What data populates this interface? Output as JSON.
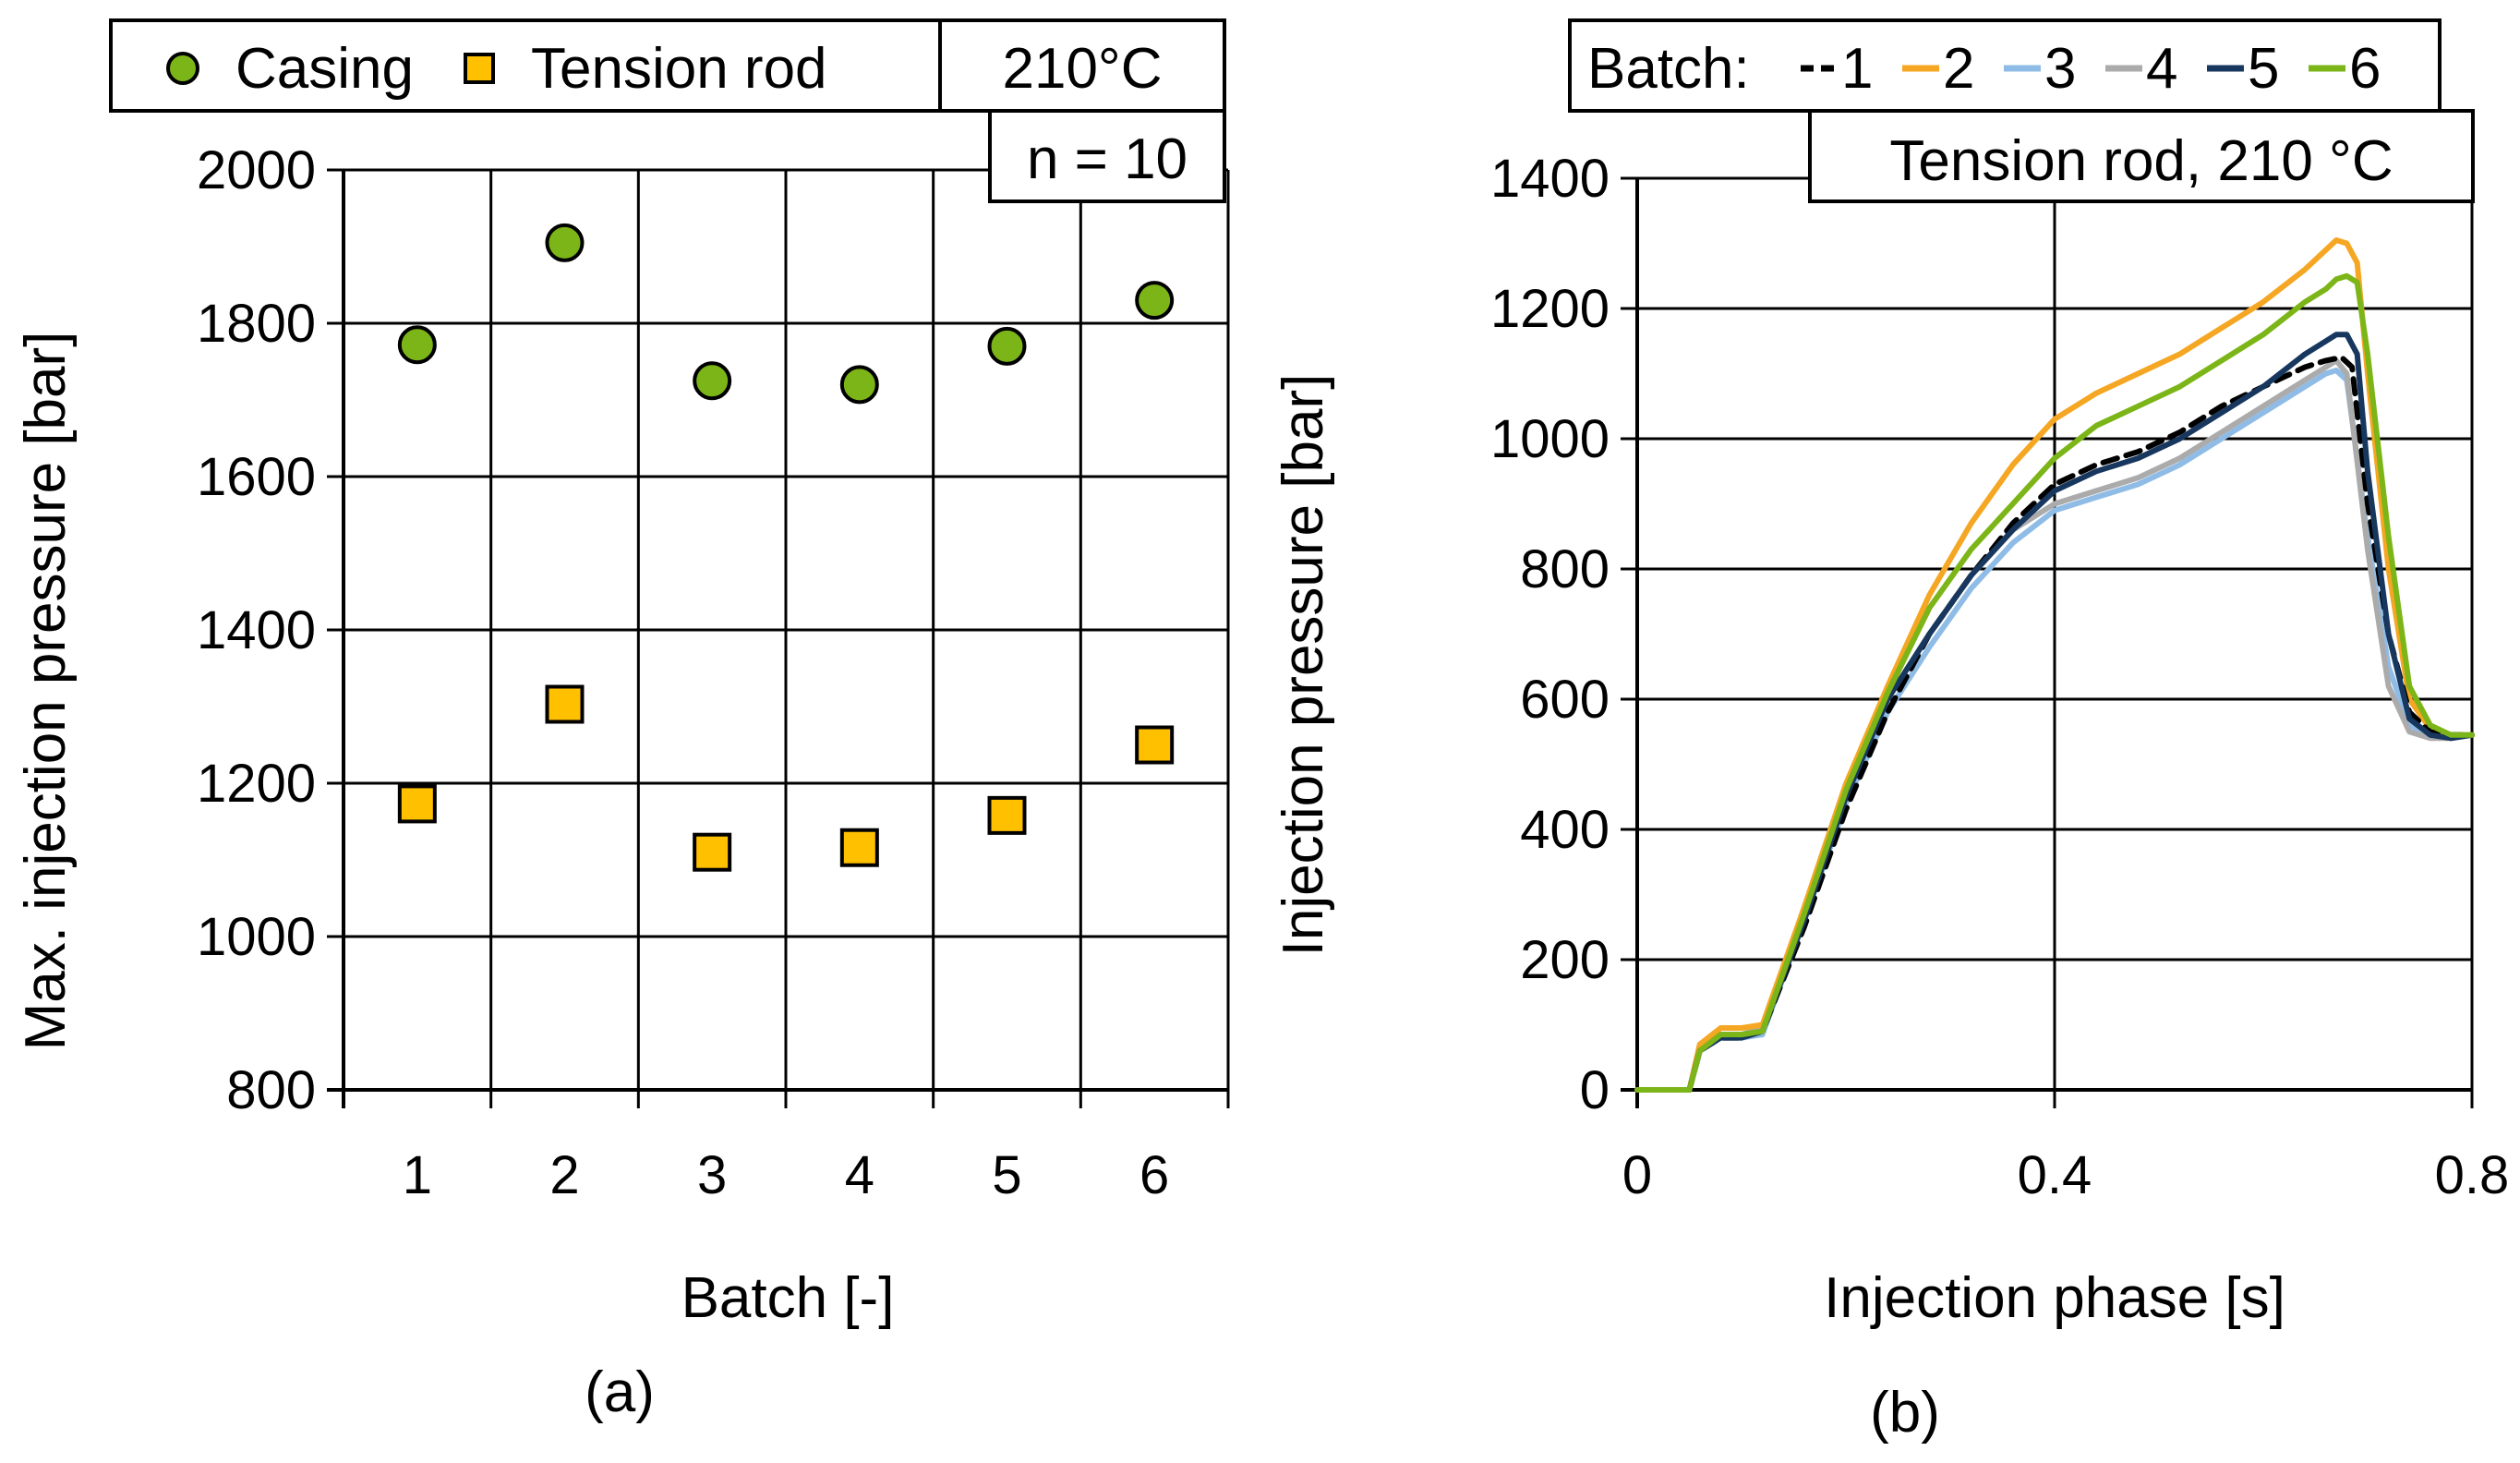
{
  "chart_data": [
    {
      "type": "scatter",
      "panel_label": "(a)",
      "xlabel": "Batch   [-]",
      "ylabel": "Max. injection pressure   [bar]",
      "categories": [
        "1",
        "2",
        "3",
        "4",
        "5",
        "6"
      ],
      "ylim": [
        800,
        2000
      ],
      "yticks": [
        "800",
        "1000",
        "1200",
        "1400",
        "1600",
        "1800",
        "2000"
      ],
      "grid": true,
      "legend_position": "top",
      "annotations": [
        "210°C",
        "n = 10"
      ],
      "series": [
        {
          "name": "Casing",
          "marker": "circle",
          "color": "#7CB518",
          "values": [
            1772,
            1905,
            1725,
            1720,
            1770,
            1830
          ]
        },
        {
          "name": "Tension rod",
          "marker": "square",
          "color": "#FFC000",
          "values": [
            1173,
            1303,
            1110,
            1116,
            1158,
            1250
          ]
        }
      ]
    },
    {
      "type": "line",
      "panel_label": "(b)",
      "xlabel": "Injection phase   [s]",
      "ylabel": "Injection pressure   [bar]",
      "xlim": [
        0,
        0.8
      ],
      "xticks": [
        "0",
        "0.4",
        "0.8"
      ],
      "ylim": [
        0,
        1400
      ],
      "yticks": [
        "0",
        "200",
        "400",
        "600",
        "800",
        "1000",
        "1200",
        "1400"
      ],
      "grid": true,
      "legend_title": "Batch:",
      "legend_position": "top",
      "annotation": "Tension rod, 210 °C",
      "series": [
        {
          "name": "1",
          "color": "#000000",
          "dash": "dashed",
          "x": [
            0,
            0.04,
            0.05,
            0.06,
            0.08,
            0.1,
            0.12,
            0.16,
            0.2,
            0.24,
            0.28,
            0.32,
            0.36,
            0.4,
            0.44,
            0.48,
            0.52,
            0.56,
            0.6,
            0.64,
            0.66,
            0.675,
            0.685,
            0.7,
            0.72,
            0.74,
            0.76,
            0.78,
            0.8
          ],
          "y": [
            0,
            0,
            0,
            60,
            80,
            80,
            90,
            250,
            430,
            580,
            700,
            790,
            870,
            930,
            960,
            980,
            1010,
            1050,
            1080,
            1110,
            1120,
            1125,
            1110,
            900,
            700,
            580,
            550,
            545,
            545
          ]
        },
        {
          "name": "2",
          "color": "#F5A623",
          "dash": "solid",
          "x": [
            0,
            0.04,
            0.05,
            0.06,
            0.08,
            0.1,
            0.12,
            0.16,
            0.2,
            0.24,
            0.28,
            0.32,
            0.36,
            0.4,
            0.44,
            0.48,
            0.52,
            0.56,
            0.6,
            0.64,
            0.66,
            0.67,
            0.68,
            0.69,
            0.7,
            0.72,
            0.74,
            0.76,
            0.78,
            0.8
          ],
          "y": [
            0,
            0,
            0,
            70,
            95,
            95,
            100,
            280,
            470,
            620,
            760,
            870,
            960,
            1030,
            1070,
            1100,
            1130,
            1170,
            1210,
            1260,
            1290,
            1305,
            1300,
            1270,
            1100,
            800,
            600,
            555,
            545,
            545
          ]
        },
        {
          "name": "3",
          "color": "#8FBCE6",
          "dash": "solid",
          "x": [
            0,
            0.04,
            0.05,
            0.06,
            0.08,
            0.1,
            0.12,
            0.16,
            0.2,
            0.24,
            0.28,
            0.32,
            0.36,
            0.4,
            0.44,
            0.48,
            0.52,
            0.56,
            0.6,
            0.64,
            0.66,
            0.67,
            0.68,
            0.7,
            0.72,
            0.74,
            0.76,
            0.78,
            0.8
          ],
          "y": [
            0,
            0,
            0,
            65,
            80,
            80,
            85,
            260,
            440,
            580,
            680,
            770,
            840,
            890,
            910,
            930,
            960,
            1000,
            1040,
            1080,
            1100,
            1105,
            1090,
            850,
            650,
            560,
            545,
            545,
            545
          ]
        },
        {
          "name": "4",
          "color": "#ABABAB",
          "dash": "solid",
          "x": [
            0,
            0.04,
            0.05,
            0.06,
            0.08,
            0.1,
            0.12,
            0.16,
            0.2,
            0.24,
            0.28,
            0.32,
            0.36,
            0.4,
            0.44,
            0.48,
            0.52,
            0.56,
            0.6,
            0.64,
            0.66,
            0.67,
            0.68,
            0.7,
            0.72,
            0.74,
            0.76,
            0.78,
            0.8
          ],
          "y": [
            0,
            0,
            0,
            70,
            85,
            85,
            95,
            280,
            470,
            600,
            700,
            790,
            860,
            900,
            920,
            940,
            970,
            1010,
            1050,
            1090,
            1110,
            1120,
            1100,
            830,
            620,
            550,
            540,
            540,
            545
          ]
        },
        {
          "name": "5",
          "color": "#17375E",
          "dash": "solid",
          "x": [
            0,
            0.04,
            0.05,
            0.06,
            0.08,
            0.1,
            0.12,
            0.16,
            0.2,
            0.24,
            0.28,
            0.32,
            0.36,
            0.4,
            0.44,
            0.48,
            0.52,
            0.56,
            0.6,
            0.64,
            0.66,
            0.67,
            0.68,
            0.69,
            0.7,
            0.72,
            0.74,
            0.76,
            0.78,
            0.8
          ],
          "y": [
            0,
            0,
            0,
            60,
            80,
            80,
            90,
            260,
            450,
            600,
            700,
            790,
            860,
            920,
            950,
            970,
            1000,
            1040,
            1080,
            1130,
            1150,
            1160,
            1160,
            1130,
            950,
            700,
            570,
            545,
            540,
            545
          ]
        },
        {
          "name": "6",
          "color": "#7CB518",
          "dash": "solid",
          "x": [
            0,
            0.04,
            0.05,
            0.06,
            0.08,
            0.1,
            0.12,
            0.16,
            0.2,
            0.24,
            0.28,
            0.32,
            0.36,
            0.4,
            0.44,
            0.48,
            0.52,
            0.56,
            0.6,
            0.64,
            0.66,
            0.67,
            0.68,
            0.69,
            0.7,
            0.72,
            0.74,
            0.76,
            0.78,
            0.8
          ],
          "y": [
            0,
            0,
            0,
            60,
            85,
            85,
            90,
            270,
            460,
            610,
            740,
            830,
            900,
            970,
            1020,
            1050,
            1080,
            1120,
            1160,
            1210,
            1230,
            1245,
            1250,
            1240,
            1130,
            850,
            620,
            560,
            545,
            545
          ]
        }
      ]
    }
  ]
}
